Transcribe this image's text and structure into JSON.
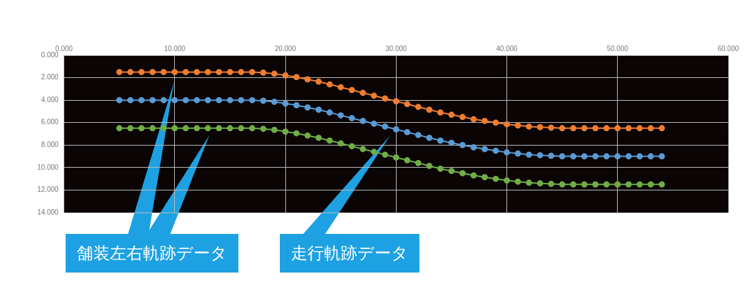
{
  "chart_data": {
    "type": "line",
    "x": [
      5,
      6,
      7,
      8,
      9,
      10,
      11,
      12,
      13,
      14,
      15,
      16,
      17,
      18,
      19,
      20,
      21,
      22,
      23,
      24,
      25,
      26,
      27,
      28,
      29,
      30,
      31,
      32,
      33,
      34,
      35,
      36,
      37,
      38,
      39,
      40,
      41,
      42,
      43,
      44,
      45,
      46,
      47,
      48,
      49,
      50,
      51,
      52,
      53,
      54
    ],
    "series": [
      {
        "color": "#ed7d31",
        "values": [
          1.5,
          1.5,
          1.5,
          1.5,
          1.5,
          1.5,
          1.5,
          1.5,
          1.5,
          1.5,
          1.5,
          1.5,
          1.5,
          1.55,
          1.65,
          1.8,
          1.95,
          2.15,
          2.35,
          2.6,
          2.85,
          3.1,
          3.35,
          3.6,
          3.85,
          4.1,
          4.35,
          4.6,
          4.85,
          5.1,
          5.3,
          5.5,
          5.7,
          5.85,
          6.0,
          6.15,
          6.25,
          6.35,
          6.4,
          6.45,
          6.5,
          6.5,
          6.5,
          6.5,
          6.5,
          6.5,
          6.5,
          6.5,
          6.5,
          6.5
        ]
      },
      {
        "color": "#5b9bd5",
        "values": [
          4.0,
          4.0,
          4.0,
          4.0,
          4.0,
          4.0,
          4.0,
          4.0,
          4.0,
          4.0,
          4.0,
          4.0,
          4.0,
          4.05,
          4.15,
          4.3,
          4.45,
          4.65,
          4.85,
          5.1,
          5.35,
          5.6,
          5.85,
          6.1,
          6.35,
          6.6,
          6.85,
          7.1,
          7.35,
          7.6,
          7.8,
          8.0,
          8.2,
          8.35,
          8.5,
          8.65,
          8.75,
          8.85,
          8.9,
          8.95,
          9.0,
          9.0,
          9.0,
          9.0,
          9.0,
          9.0,
          9.0,
          9.0,
          9.0,
          9.0
        ]
      },
      {
        "color": "#70ad47",
        "values": [
          6.5,
          6.5,
          6.5,
          6.5,
          6.5,
          6.5,
          6.5,
          6.5,
          6.5,
          6.5,
          6.5,
          6.5,
          6.5,
          6.55,
          6.65,
          6.8,
          6.95,
          7.15,
          7.35,
          7.6,
          7.85,
          8.1,
          8.35,
          8.6,
          8.85,
          9.1,
          9.35,
          9.6,
          9.85,
          10.1,
          10.3,
          10.5,
          10.7,
          10.85,
          11.0,
          11.15,
          11.25,
          11.35,
          11.4,
          11.45,
          11.5,
          11.5,
          11.5,
          11.5,
          11.5,
          11.5,
          11.5,
          11.5,
          11.5,
          11.5
        ]
      }
    ],
    "xlim": [
      0,
      60
    ],
    "xticks": [
      {
        "value": 0,
        "label": "0.000"
      },
      {
        "value": 10,
        "label": "10.000"
      },
      {
        "value": 20,
        "label": "20.000"
      },
      {
        "value": 30,
        "label": "30.000"
      },
      {
        "value": 40,
        "label": "40.000"
      },
      {
        "value": 50,
        "label": "50.000"
      },
      {
        "value": 60,
        "label": "60.000"
      }
    ],
    "ylim": [
      14,
      0
    ],
    "yticks": [
      {
        "value": 0,
        "label": "0.000"
      },
      {
        "value": 2,
        "label": "2.000"
      },
      {
        "value": 4,
        "label": "4.000"
      },
      {
        "value": 6,
        "label": "6.000"
      },
      {
        "value": 8,
        "label": "8.000"
      },
      {
        "value": 10,
        "label": "10.000"
      },
      {
        "value": 12,
        "label": "12.000"
      },
      {
        "value": 14,
        "label": "14.000"
      }
    ],
    "grid": true,
    "marker": "circle",
    "line_style": "solid",
    "legend": false,
    "annotations": [
      "舗装左右軌跡データ",
      "走行軌跡データ"
    ]
  }
}
